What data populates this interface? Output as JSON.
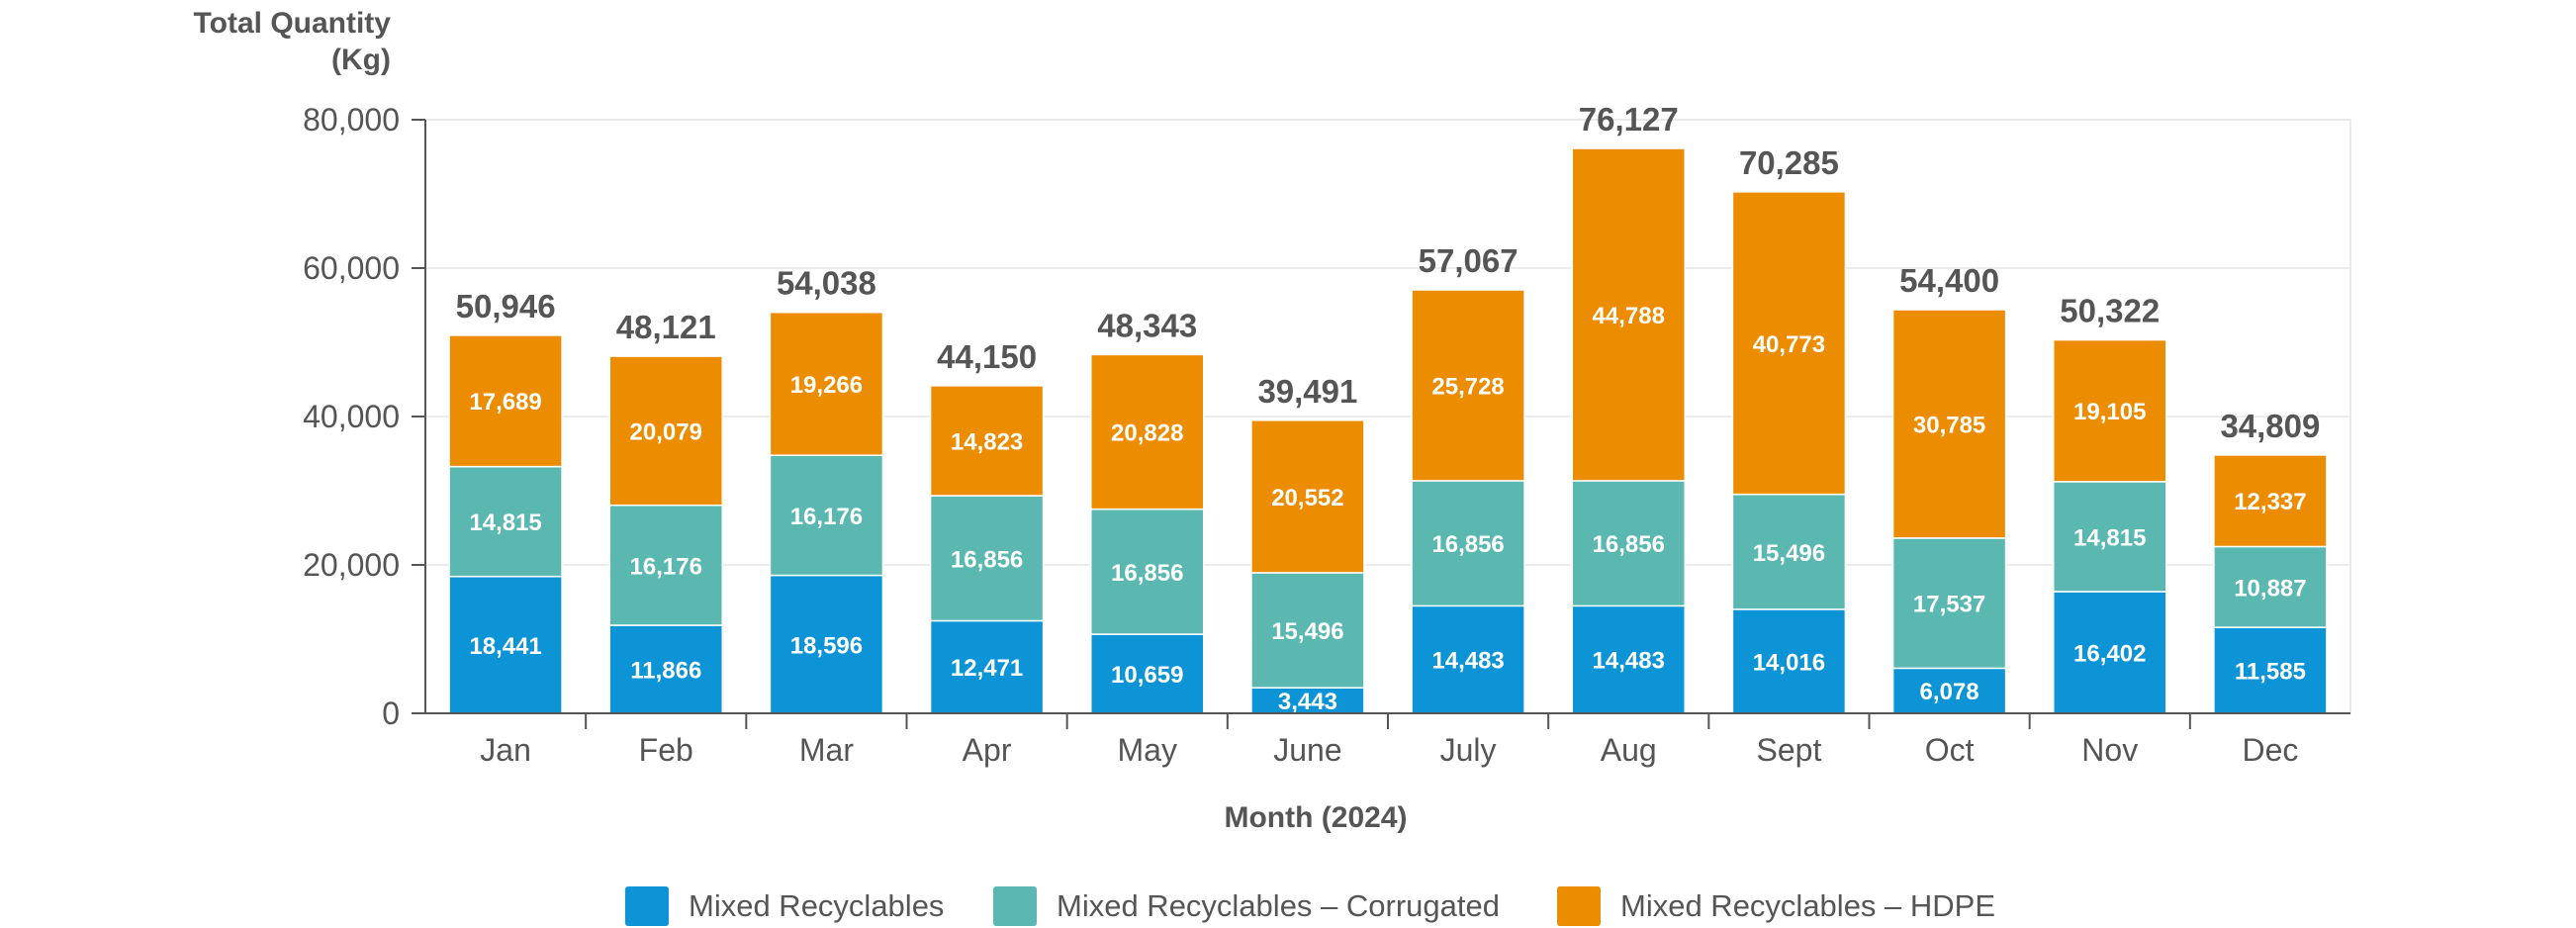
{
  "chart_data": {
    "type": "bar",
    "stacked": true,
    "title": "",
    "ylabel": "Total Quantity (Kg)",
    "ylabel_lines": [
      "Total Quantity",
      "(Kg)"
    ],
    "xlabel": "Month (2024)",
    "ylim": [
      0,
      80000
    ],
    "yticks": [
      0,
      20000,
      40000,
      60000,
      80000
    ],
    "ytick_labels": [
      "0",
      "20,000",
      "40,000",
      "60,000",
      "80,000"
    ],
    "grid": true,
    "legend_position": "bottom",
    "categories": [
      "Jan",
      "Feb",
      "Mar",
      "Apr",
      "May",
      "June",
      "July",
      "Aug",
      "Sept",
      "Oct",
      "Nov",
      "Dec"
    ],
    "series": [
      {
        "name": "Mixed Recyclables",
        "color": "#0d94d6",
        "values": [
          18441,
          11866,
          18596,
          12471,
          10659,
          3443,
          14483,
          14483,
          14016,
          6078,
          16402,
          11585
        ],
        "labels": [
          "18,441",
          "11,866",
          "18,596",
          "12,471",
          "10,659",
          "3,443",
          "14,483",
          "14,483",
          "14,016",
          "6,078",
          "16,402",
          "11,585"
        ]
      },
      {
        "name": "Mixed Recyclables – Corrugated",
        "color": "#5ab8b0",
        "values": [
          14815,
          16176,
          16176,
          16856,
          16856,
          15496,
          16856,
          16856,
          15496,
          17537,
          14815,
          10887
        ],
        "labels": [
          "14,815",
          "16,176",
          "16,176",
          "16,856",
          "16,856",
          "15,496",
          "16,856",
          "16,856",
          "15,496",
          "17,537",
          "14,815",
          "10,887"
        ]
      },
      {
        "name": "Mixed Recyclables – HDPE",
        "color": "#ec8c00",
        "values": [
          17689,
          20079,
          19266,
          14823,
          20828,
          20552,
          25728,
          44788,
          40773,
          30785,
          19105,
          12337
        ],
        "labels": [
          "17,689",
          "20,079",
          "19,266",
          "14,823",
          "20,828",
          "20,552",
          "25,728",
          "44,788",
          "40,773",
          "30,785",
          "19,105",
          "12,337"
        ]
      }
    ],
    "totals": [
      50946,
      48121,
      54038,
      44150,
      48343,
      39491,
      57067,
      76127,
      70285,
      54400,
      50322,
      34809
    ],
    "total_labels": [
      "50,946",
      "48,121",
      "54,038",
      "44,150",
      "48,343",
      "39,491",
      "57,067",
      "76,127",
      "70,285",
      "54,400",
      "50,322",
      "34,809"
    ]
  }
}
